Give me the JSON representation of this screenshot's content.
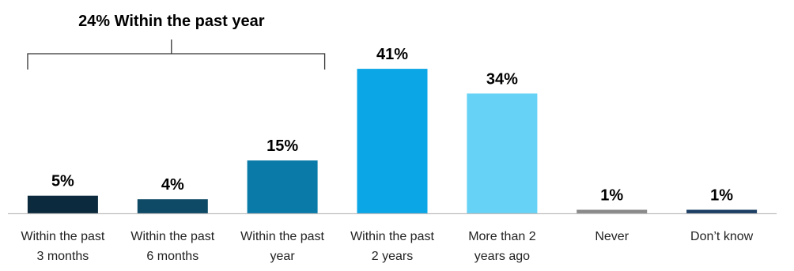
{
  "chart_data": {
    "type": "bar",
    "categories": [
      [
        "Within the past",
        "3 months"
      ],
      [
        "Within the past",
        "6 months"
      ],
      [
        "Within the past",
        "year"
      ],
      [
        "Within the past",
        "2 years"
      ],
      [
        "More than 2",
        "years ago"
      ],
      [
        "Never"
      ],
      [
        "Don’t know"
      ]
    ],
    "values": [
      5,
      4,
      15,
      41,
      34,
      1,
      1
    ],
    "value_labels": [
      "5%",
      "4%",
      "15%",
      "41%",
      "34%",
      "1%",
      "1%"
    ],
    "colors": [
      "#0b2a3d",
      "#0e4a66",
      "#0a7aa8",
      "#0aa6e6",
      "#66d2f6",
      "#8a8a8a",
      "#1c3f63"
    ],
    "ylim": [
      0,
      45
    ],
    "grid": false,
    "annotation": {
      "text": "24% Within the past year",
      "spans_categories": [
        0,
        2
      ]
    }
  }
}
